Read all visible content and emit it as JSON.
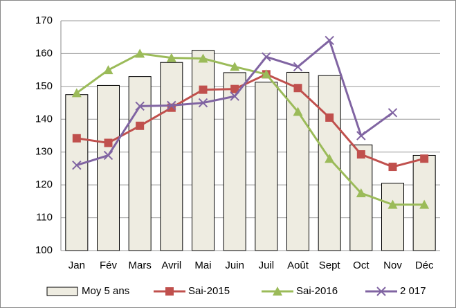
{
  "chart_data": {
    "type": "bar",
    "categories": [
      "Jan",
      "Fév",
      "Mars",
      "Avril",
      "Mai",
      "Juin",
      "Juil",
      "Août",
      "Sept",
      "Oct",
      "Nov",
      "Déc"
    ],
    "series": [
      {
        "name": "Moy 5 ans",
        "type": "bar",
        "color": "#eeece1",
        "values": [
          147.5,
          150.3,
          153,
          157.3,
          161,
          154.2,
          151.3,
          154.3,
          153.3,
          132.2,
          120.5,
          129
        ]
      },
      {
        "name": "Sai-2015",
        "type": "line",
        "marker": "square",
        "color": "#c0504d",
        "values": [
          134.2,
          132.8,
          138,
          143.5,
          149,
          149.2,
          153.7,
          149.5,
          140.5,
          129.3,
          125.5,
          128
        ]
      },
      {
        "name": "Sai-2016",
        "type": "line",
        "marker": "triangle",
        "color": "#9bbb59",
        "values": [
          148,
          155,
          160,
          158.7,
          158.5,
          156,
          153.7,
          142.3,
          128,
          117.5,
          114,
          114
        ]
      },
      {
        "name": "2 017",
        "type": "line",
        "marker": "x",
        "color": "#8064a2",
        "values": [
          126,
          129,
          144,
          144.2,
          145,
          147,
          159,
          156,
          164,
          135,
          142,
          null
        ]
      }
    ],
    "ylim": [
      100,
      170
    ],
    "yticks": [
      100,
      110,
      120,
      130,
      140,
      150,
      160,
      170
    ],
    "grid": true,
    "legend": "bottom"
  }
}
